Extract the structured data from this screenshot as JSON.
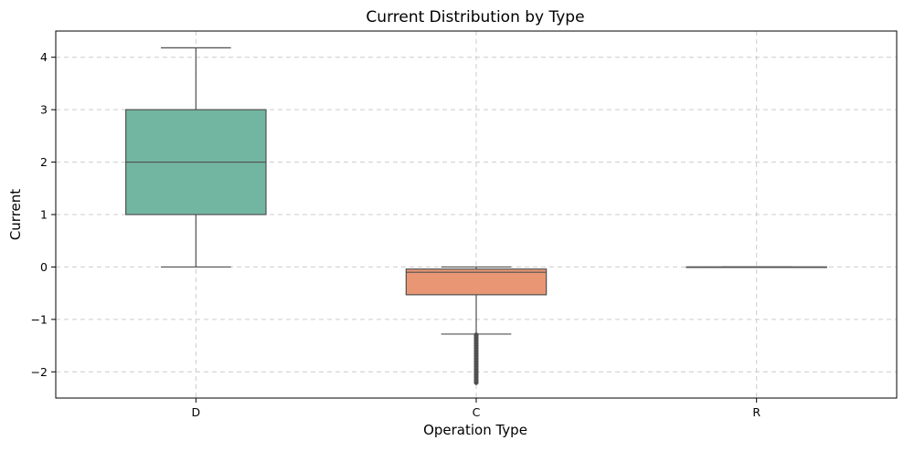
{
  "chart_data": {
    "type": "box",
    "title": "Current Distribution by Type",
    "xlabel": "Operation Type",
    "ylabel": "Current",
    "ylim": [
      -2.5,
      4.5
    ],
    "yticks": [
      -2,
      -1,
      0,
      1,
      2,
      3,
      4
    ],
    "ytick_labels": [
      "−2",
      "−1",
      "0",
      "1",
      "2",
      "3",
      "4"
    ],
    "grid": true,
    "categories": [
      "D",
      "C",
      "R"
    ],
    "boxes": [
      {
        "category": "D",
        "whisker_low": 0.0,
        "q1": 1.0,
        "median": 2.0,
        "q3": 3.0,
        "whisker_high": 4.18,
        "color": "#72b6a1",
        "outliers": []
      },
      {
        "category": "C",
        "whisker_low": -1.28,
        "q1": -0.53,
        "median": -0.1,
        "q3": -0.04,
        "whisker_high": 0.0,
        "color": "#e99675",
        "outliers": [
          -1.3,
          -1.35,
          -1.4,
          -1.45,
          -1.5,
          -1.55,
          -1.6,
          -1.65,
          -1.7,
          -1.75,
          -1.8,
          -1.85,
          -1.9,
          -1.95,
          -2.0,
          -2.05,
          -2.1,
          -2.15,
          -2.2
        ]
      },
      {
        "category": "R",
        "whisker_low": 0.0,
        "q1": 0.0,
        "median": 0.0,
        "q3": 0.0,
        "whisker_high": 0.0,
        "color": "#9da3c2",
        "outliers": []
      }
    ]
  }
}
